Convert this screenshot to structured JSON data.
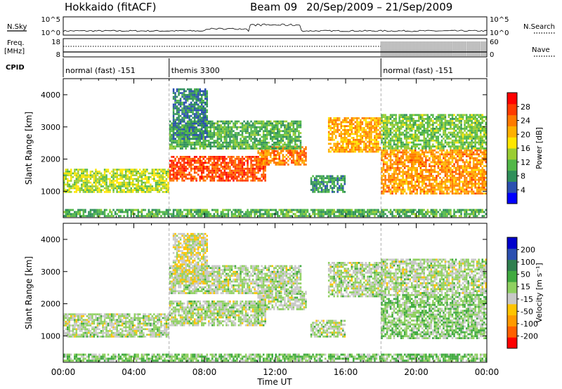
{
  "header": {
    "station": "Hokkaido (fitACF)",
    "beam": "Beam 09",
    "date_range": "20/Sep/2009 – 21/Sep/2009"
  },
  "top_panels": {
    "nsky_label": "N.Sky",
    "nsky_ticks": [
      "10^5",
      "10^0"
    ],
    "nsearch_label": "N.Search",
    "nsearch_ticks": [
      "10^5",
      "10^0"
    ],
    "freq_label": "Freq.",
    "freq_unit": "[MHz]",
    "freq_ticks": [
      "18",
      "8"
    ],
    "nave_label": "Nave",
    "nave_ticks": [
      "60",
      "0"
    ],
    "cpid_label": "CPID",
    "cpid_segments": [
      {
        "label": "normal (fast) -151",
        "start_h": 0,
        "end_h": 6
      },
      {
        "label": "themis 3300",
        "start_h": 6,
        "end_h": 18
      },
      {
        "label": "normal (fast) -151",
        "start_h": 18,
        "end_h": 24
      }
    ]
  },
  "chart_data": [
    {
      "type": "heatmap",
      "quantity": "Power",
      "ylabel": "Slant Range [km]",
      "xlabel": "Time UT",
      "x_ticks": [
        "00:00",
        "04:00",
        "08:00",
        "12:00",
        "16:00",
        "20:00",
        "00:00"
      ],
      "x_range_h": [
        0,
        24
      ],
      "y_ticks": [
        1000,
        2000,
        3000,
        4000
      ],
      "ylim": [
        180,
        4500
      ],
      "colorbar": {
        "label": "Power [dB]",
        "ticks": [
          "4",
          "8",
          "12",
          "16",
          "20",
          "24",
          "28"
        ],
        "range": [
          0,
          30
        ],
        "colors": [
          "#0000ff",
          "#2b4fb0",
          "#2f8f5a",
          "#52b848",
          "#9acd32",
          "#ffe600",
          "#ffb000",
          "#ff7a00",
          "#ff3b00",
          "#ff0000"
        ]
      },
      "regions": [
        {
          "t0": 0.0,
          "t1": 6.0,
          "r0": 950,
          "r1": 1700,
          "value": 14
        },
        {
          "t0": 6.0,
          "t1": 11.5,
          "r0": 1300,
          "r1": 2100,
          "value": 25
        },
        {
          "t0": 11.0,
          "t1": 13.8,
          "r0": 1800,
          "r1": 2400,
          "value": 22
        },
        {
          "t0": 6.0,
          "t1": 13.5,
          "r0": 2300,
          "r1": 3200,
          "value": 10
        },
        {
          "t0": 6.2,
          "t1": 8.2,
          "r0": 2600,
          "r1": 4200,
          "value": 7
        },
        {
          "t0": 14.0,
          "t1": 16.0,
          "r0": 950,
          "r1": 1500,
          "value": 8
        },
        {
          "t0": 15.0,
          "t1": 18.0,
          "r0": 2200,
          "r1": 3300,
          "value": 20
        },
        {
          "t0": 18.0,
          "t1": 24.0,
          "r0": 900,
          "r1": 2300,
          "value": 21
        },
        {
          "t0": 18.0,
          "t1": 24.0,
          "r0": 2300,
          "r1": 3400,
          "value": 12
        },
        {
          "t0": 0.0,
          "t1": 24.0,
          "r0": 200,
          "r1": 450,
          "value": 10
        }
      ]
    },
    {
      "type": "heatmap",
      "quantity": "Velocity",
      "ylabel": "Slant Range [km]",
      "xlabel": "Time UT",
      "x_ticks": [
        "00:00",
        "04:00",
        "08:00",
        "12:00",
        "16:00",
        "20:00",
        "00:00"
      ],
      "x_range_h": [
        0,
        24
      ],
      "y_ticks": [
        1000,
        2000,
        3000,
        4000
      ],
      "ylim": [
        180,
        4500
      ],
      "colorbar": {
        "label": "Velocity [m s⁻¹]",
        "ticks": [
          "200",
          "100",
          "50",
          "15",
          "-15",
          "-50",
          "-100",
          "-200"
        ],
        "range": [
          -250,
          250
        ],
        "colors": [
          "#ff0000",
          "#ff6000",
          "#ff9a00",
          "#ffc400",
          "#c8c8c8",
          "#8fd060",
          "#3faa3f",
          "#2f7f4f",
          "#2b4fb0",
          "#0000cc"
        ]
      },
      "regions": [
        {
          "t0": 0.0,
          "t1": 6.0,
          "r0": 950,
          "r1": 1700,
          "value": 0
        },
        {
          "t0": 6.0,
          "t1": 11.5,
          "r0": 1300,
          "r1": 2100,
          "value": 0
        },
        {
          "t0": 11.0,
          "t1": 13.8,
          "r0": 1800,
          "r1": 2400,
          "value": 0
        },
        {
          "t0": 6.0,
          "t1": 13.5,
          "r0": 2300,
          "r1": 3200,
          "value": 0
        },
        {
          "t0": 6.2,
          "t1": 8.2,
          "r0": 2600,
          "r1": 4200,
          "value": -30
        },
        {
          "t0": 14.0,
          "t1": 16.0,
          "r0": 950,
          "r1": 1500,
          "value": 0
        },
        {
          "t0": 15.0,
          "t1": 18.0,
          "r0": 2200,
          "r1": 3300,
          "value": 0
        },
        {
          "t0": 18.0,
          "t1": 24.0,
          "r0": 900,
          "r1": 2300,
          "value": 30
        },
        {
          "t0": 18.0,
          "t1": 24.0,
          "r0": 2300,
          "r1": 3400,
          "value": 0
        },
        {
          "t0": 0.0,
          "t1": 24.0,
          "r0": 200,
          "r1": 450,
          "value": 40
        }
      ]
    }
  ]
}
